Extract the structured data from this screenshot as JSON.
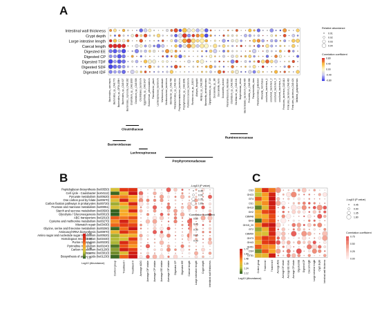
{
  "figure": {
    "panels": [
      {
        "letter": "A",
        "rows": [
          "Intestinal wall thickness",
          "Crypt depth",
          "Large intestine length",
          "Caecal length",
          "Digested EE",
          "Digested CP",
          "Digested TDF",
          "Digested SDF",
          "Digested IDF"
        ],
        "columns": [
          "Bacteroides_caecimuris",
          "Bacteroides_sp._CAG:770",
          "Bacteroides_sp._OF04-15BH",
          "Bacteroides_sp._CAG:927",
          "Bacteroides_coprocola_CAG:162",
          "Clostridium_sp._CAG:1000",
          "Clostridium_sp._CAG:508",
          "Clostridiales_bacterium",
          "Eggerthella_sp._CAG:1427",
          "Eubacterium_plexicaudatum",
          "Flavonifractor_plautii",
          "Lachnospiraceae_bacterium",
          "Muribaculum_intestinale",
          "Muribaculaceae_bacterium",
          "Odoribacter_sp._CAG:788",
          "Parabacteroides_sp._CAG:409",
          "Porphyromonadaceae_bacterium",
          "Porphyromonas_sp._CAG:1061",
          "Ruminococcaceae_bacterium",
          "Ruminococcus_sp._CAG:9",
          "Alistipes_finegoldii",
          "Alistipes_sp._CAG:268",
          "Barnesiella_intestinihominis",
          "Dysgonomonas_sp._37-18",
          "Duncaniella_sp._B8",
          "Duncaniella_muris",
          "Duncaniella_dubosii",
          "Paramuribaculum_intestinale",
          "Clostridium_sp._CAG:302",
          "Oscillibacter_sp._CAG:241",
          "Butyricimonas_virosa",
          "Bacteroidales_bacterium_CAG:485",
          "Prevotella_sp._CAG:386",
          "Paraprevotella_clara",
          "Parabacteroides_goldsteinii",
          "Rikenella_microfusus",
          "uncultured_bacterium_1",
          "uncultured_bacterium_2",
          "uncultured_bacterium_3",
          "uncultured_bacterium_4",
          "Firmicutes_bacterium_CAG:110",
          "Firmicutes_bacterium_CAG:460",
          "Firmicutes_bacterium_CAG:424",
          "Vallitalea_guaymasensis"
        ],
        "families": [
          "Bacteroidaceae",
          "Clostridiaceae",
          "Lachnospiraceae",
          "Porphyromonadaceae",
          "Ruminococcaceae"
        ],
        "legend_size_title": "Relative abundance",
        "legend_size_values": [
          "0.01",
          "0.02",
          "0.03",
          "0.04"
        ],
        "legend_color_title": "Correlation coefficient",
        "legend_color_values": [
          "0.80",
          "0.40",
          "0.00",
          "-0.40",
          "-0.80"
        ]
      },
      {
        "letter": "B",
        "rows": [
          "Peptidoglycan biosynthesis (ko00550)",
          "Cell cycle - Caulobacter (ko04112)",
          "Pyruvate metabolism (ko00620)",
          "One carbon pool by folate (ko00670)",
          "Carbon fixation pathways in prokaryotes (ko00720)",
          "Fructose and mannose metabolism (ko00051)",
          "Starch and sucrose metabolism (ko00500)",
          "Glycolysis / Gluconeogenesis (ko00010)",
          "ABC transporters (ko02010)",
          "Cysteine and methionine metabolism (ko00270)",
          "Mismatch repair (ko03430)",
          "Glycine, serine and threonine metabolism (ko00260)",
          "Aminoacyl-tRNA biosynthesis (ko00970)",
          "Amino sugar and nucleotide sugar metabolism (ko00520)",
          "Homologous recombination (ko03440)",
          "Purine metabolism (ko00230)",
          "Pyrimidine metabolism (ko00240)",
          "Carbon metabolism (ko01200)",
          "Ribosome (ko03010)",
          "Biosynthesis of amino acids (ko01230)"
        ],
        "heat_columns": [
          "Control group",
          "Treatment I",
          "Treatment II"
        ],
        "dot_columns": [
          "Average ADG",
          "Average DF intake",
          "Average CP intake",
          "Average EE intake",
          "Average OF intake",
          "Digested CP",
          "Digested EE",
          "Caecal length",
          "Large intestine length",
          "Crypt depth",
          "Intestinal wall thickness"
        ],
        "heat_legend_values": [
          "1.80",
          "1.69",
          "1.59",
          "1.48",
          "1.37",
          "1.27"
        ],
        "heat_legend_title": "Log10 (Abundance)",
        "size_legend_title": "-Log10 (P value)",
        "size_legend_values": [
          "0.45",
          "0.90",
          "1.35",
          "1.80"
        ],
        "color_legend_title": "Correlation coefficient",
        "color_legend_values": [
          "0.60",
          "0.45",
          "0.30",
          "0.15",
          "0.00"
        ]
      },
      {
        "letter": "C",
        "rows": [
          "CE3",
          "GH23",
          "GT4",
          "CE1",
          "GH13",
          "GH2",
          "CBM48",
          "GH3",
          "GH15_20",
          "GT2",
          "CBM50",
          "GH73",
          "GH43",
          "GH51",
          "CE4",
          "GT51"
        ],
        "heat_columns": [
          "Control group",
          "Treatment I",
          "Treatment II"
        ],
        "dot_columns": [
          "Average ADG",
          "Average DF intake",
          "Average EE intake",
          "Average CP intake",
          "Digested EE",
          "Digested CP",
          "Caecal length",
          "Large intestine length",
          "Crypt depth",
          "Intestinal wall thickness"
        ],
        "heat_legend_values": [
          "1.72",
          "1.60",
          "1.48",
          "1.36",
          "1.24",
          "1.12"
        ],
        "heat_legend_title": "Log10 (Abundance)",
        "size_legend_title": "-Log10 (P value)",
        "size_legend_values": [
          "0.45",
          "0.90",
          "1.35",
          "1.80"
        ],
        "color_legend_title": "Correlation coefficient",
        "color_legend_values": [
          "0.75",
          "0.50",
          "0.25",
          "0.00"
        ]
      }
    ]
  }
}
